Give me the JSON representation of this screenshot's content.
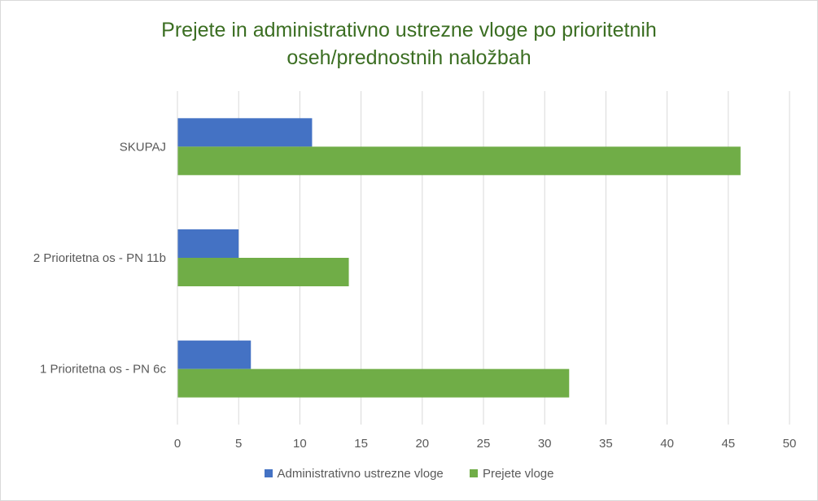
{
  "colors": {
    "admin": "#4472c4",
    "received": "#70ad47",
    "title": "#3b6e22",
    "grid": "#d9d9d9",
    "text": "#595959"
  },
  "chart_data": {
    "type": "bar",
    "orientation": "horizontal",
    "title_line1": "Prejete in administrativno ustrezne vloge po prioritetnih",
    "title_line2": "oseh/prednostnih  naložbah",
    "categories": [
      "SKUPAJ",
      "2 Prioritetna os - PN 11b",
      "1 Prioritetna os - PN 6c"
    ],
    "series": [
      {
        "name": "Administrativno ustrezne vloge",
        "values": [
          11,
          5,
          6
        ]
      },
      {
        "name": "Prejete vloge",
        "values": [
          46,
          14,
          32
        ]
      }
    ],
    "xlim": [
      0,
      50
    ],
    "xticks": [
      0,
      5,
      10,
      15,
      20,
      25,
      30,
      35,
      40,
      45,
      50
    ],
    "grid": true,
    "legend_position": "bottom"
  }
}
